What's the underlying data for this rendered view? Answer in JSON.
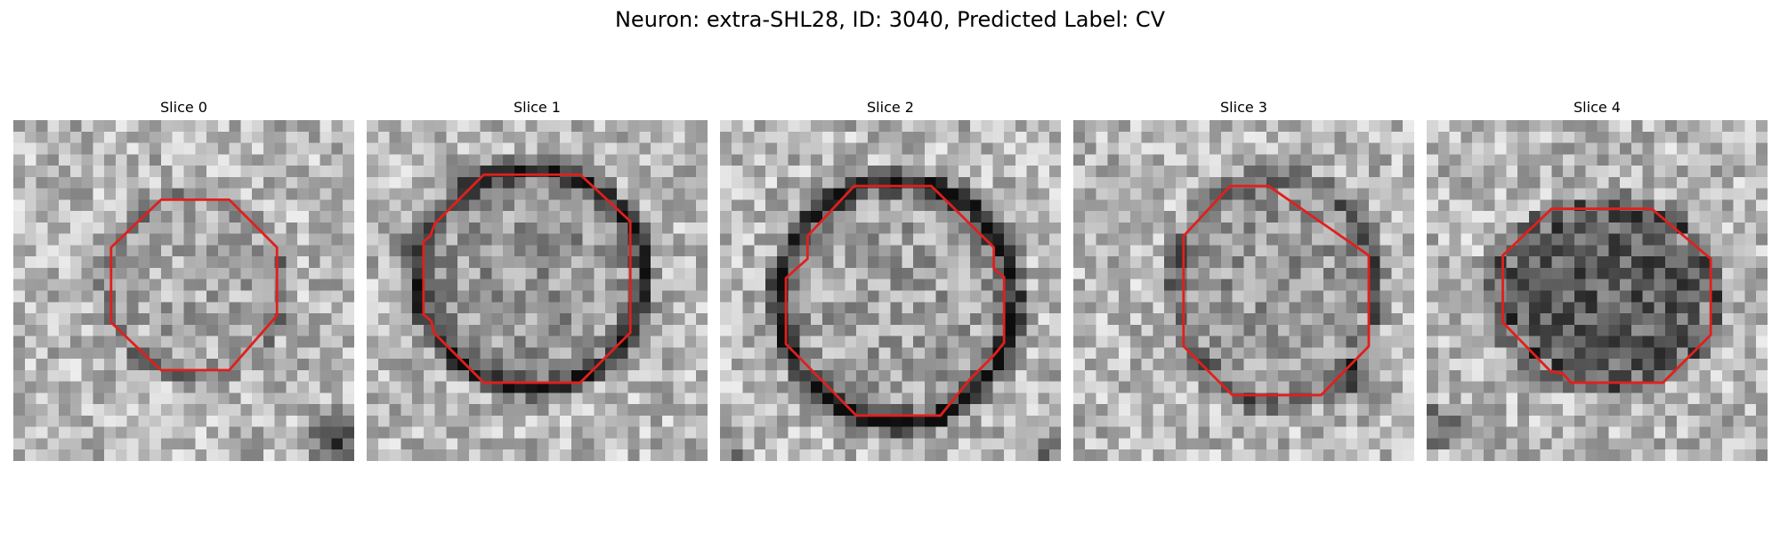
{
  "figure": {
    "title": "Neuron: extra-SHL28, ID: 3040, Predicted Label: CV"
  },
  "slices": [
    {
      "title": "Slice 0",
      "outline_color": "#e0201c"
    },
    {
      "title": "Slice 1",
      "outline_color": "#e0201c"
    },
    {
      "title": "Slice 2",
      "outline_color": "#e0201c"
    },
    {
      "title": "Slice 3",
      "outline_color": "#e0201c"
    },
    {
      "title": "Slice 4",
      "outline_color": "#e0201c"
    }
  ]
}
